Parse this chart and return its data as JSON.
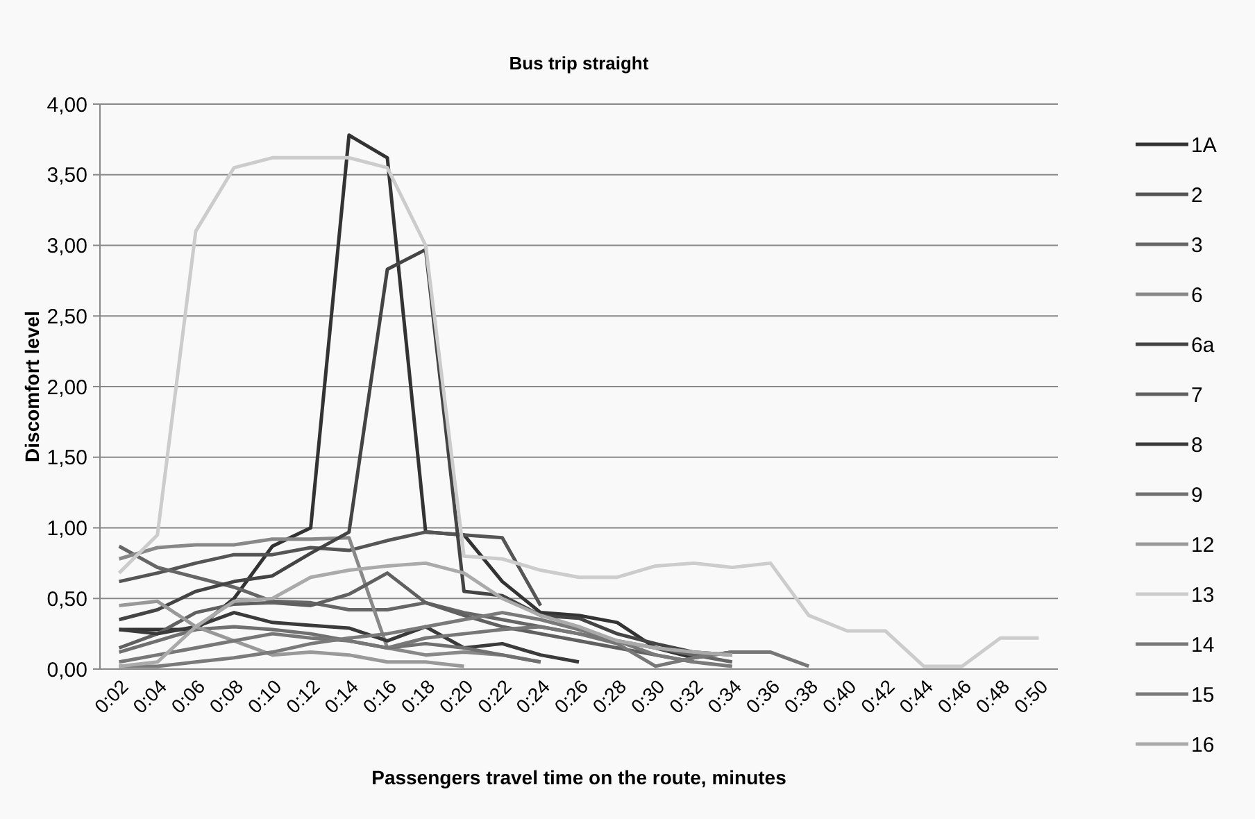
{
  "chart_data": {
    "type": "line",
    "title": "Bus trip straight",
    "xlabel": "Passengers travel time on the route, minutes",
    "ylabel": "Discomfort level",
    "categories": [
      "0:02",
      "0:04",
      "0:06",
      "0:08",
      "0:10",
      "0:12",
      "0:14",
      "0:16",
      "0:18",
      "0:20",
      "0:22",
      "0:24",
      "0:26",
      "0:28",
      "0:30",
      "0:32",
      "0:34",
      "0:36",
      "0:38",
      "0:40",
      "0:42",
      "0:44",
      "0:46",
      "0:48",
      "0:50"
    ],
    "ylim": [
      0,
      4
    ],
    "yticks": [
      {
        "value": 0,
        "label": "0,00"
      },
      {
        "value": 0.5,
        "label": "0,50"
      },
      {
        "value": 1,
        "label": "1,00"
      },
      {
        "value": 1.5,
        "label": "1,50"
      },
      {
        "value": 2,
        "label": "2,00"
      },
      {
        "value": 2.5,
        "label": "2,50"
      },
      {
        "value": 3,
        "label": "3,00"
      },
      {
        "value": 3.5,
        "label": "3,50"
      },
      {
        "value": 4,
        "label": "4,00"
      }
    ],
    "grid": "y",
    "legend": "right",
    "marker": "none",
    "line_style": "solid",
    "series": [
      {
        "name": "1A",
        "color": "#333333",
        "values": [
          0.28,
          0.28,
          0.28,
          0.5,
          0.87,
          1.0,
          3.78,
          3.62,
          0.97,
          0.95,
          0.62,
          0.4,
          0.38,
          0.33,
          0.15,
          0.08,
          0.12,
          null,
          null,
          null,
          null,
          null,
          null,
          null,
          null
        ]
      },
      {
        "name": "2",
        "color": "#555555",
        "values": [
          0.62,
          0.68,
          0.75,
          0.81,
          0.81,
          0.86,
          0.84,
          0.91,
          0.97,
          0.95,
          0.93,
          0.45,
          null,
          null,
          null,
          null,
          null,
          null,
          null,
          null,
          null,
          null,
          null,
          null,
          null
        ]
      },
      {
        "name": "3",
        "color": "#666666",
        "values": [
          0.87,
          0.72,
          0.65,
          0.58,
          0.48,
          0.47,
          0.42,
          0.42,
          0.47,
          0.4,
          0.35,
          0.3,
          0.25,
          0.2,
          0.15,
          0.1,
          0.05,
          null,
          null,
          null,
          null,
          null,
          null,
          null,
          null
        ]
      },
      {
        "name": "6",
        "color": "#888888",
        "values": [
          0.78,
          0.86,
          0.88,
          0.88,
          0.92,
          0.92,
          0.93,
          0.15,
          0.1,
          0.12,
          0.1,
          0.05,
          null,
          null,
          null,
          null,
          null,
          null,
          null,
          null,
          null,
          null,
          null,
          null,
          null
        ]
      },
      {
        "name": "6a",
        "color": "#444444",
        "values": [
          0.35,
          0.42,
          0.55,
          0.62,
          0.66,
          0.82,
          0.97,
          2.83,
          2.97,
          0.55,
          0.52,
          0.38,
          0.36,
          0.25,
          0.18,
          0.12,
          0.1,
          null,
          null,
          null,
          null,
          null,
          null,
          null,
          null
        ]
      },
      {
        "name": "7",
        "color": "#606060",
        "values": [
          0.15,
          0.25,
          0.4,
          0.46,
          0.47,
          0.45,
          0.53,
          0.68,
          0.47,
          0.38,
          0.3,
          0.25,
          0.2,
          0.15,
          0.1,
          0.05,
          null,
          null,
          null,
          null,
          null,
          null,
          null,
          null,
          null
        ]
      },
      {
        "name": "8",
        "color": "#3a3a3a",
        "values": [
          0.28,
          0.25,
          0.3,
          0.4,
          0.33,
          0.31,
          0.29,
          0.2,
          0.3,
          0.15,
          0.18,
          0.1,
          0.05,
          null,
          null,
          null,
          null,
          null,
          null,
          null,
          null,
          null,
          null,
          null,
          null
        ]
      },
      {
        "name": "9",
        "color": "#707070",
        "values": [
          0.12,
          0.2,
          0.28,
          0.3,
          0.28,
          0.25,
          0.2,
          0.15,
          0.18,
          0.15,
          0.1,
          0.05,
          null,
          null,
          null,
          null,
          null,
          null,
          null,
          null,
          null,
          null,
          null,
          null,
          null
        ]
      },
      {
        "name": "12",
        "color": "#999999",
        "values": [
          0.45,
          0.48,
          0.3,
          0.2,
          0.1,
          0.12,
          0.1,
          0.05,
          0.05,
          0.02,
          null,
          null,
          null,
          null,
          null,
          null,
          null,
          null,
          null,
          null,
          null,
          null,
          null,
          null,
          null
        ]
      },
      {
        "name": "13",
        "color": "#cccccc",
        "values": [
          0.68,
          0.95,
          3.1,
          3.55,
          3.62,
          3.62,
          3.62,
          3.55,
          3.0,
          0.8,
          0.78,
          0.7,
          0.65,
          0.65,
          0.73,
          0.75,
          0.72,
          0.75,
          0.38,
          0.27,
          0.27,
          0.02,
          0.02,
          0.22,
          0.22
        ]
      },
      {
        "name": "14",
        "color": "#777777",
        "values": [
          0.05,
          0.1,
          0.15,
          0.2,
          0.25,
          0.22,
          0.2,
          0.15,
          0.22,
          0.25,
          0.28,
          0.3,
          0.25,
          0.18,
          0.02,
          0.08,
          0.12,
          0.12,
          0.02,
          null,
          null,
          null,
          null,
          null,
          null
        ]
      },
      {
        "name": "15",
        "color": "#7a7a7a",
        "values": [
          0.02,
          0.02,
          0.05,
          0.08,
          0.12,
          0.18,
          0.22,
          0.25,
          0.3,
          0.35,
          0.4,
          0.35,
          0.28,
          0.2,
          0.1,
          0.05,
          0.02,
          null,
          null,
          null,
          null,
          null,
          null,
          null,
          null
        ]
      },
      {
        "name": "16",
        "color": "#aaaaaa",
        "values": [
          0.02,
          0.05,
          0.3,
          0.48,
          0.5,
          0.65,
          0.7,
          0.73,
          0.75,
          0.68,
          0.5,
          0.38,
          0.3,
          0.2,
          0.15,
          0.12,
          0.1,
          null,
          null,
          null,
          null,
          null,
          null,
          null,
          null
        ]
      }
    ]
  }
}
